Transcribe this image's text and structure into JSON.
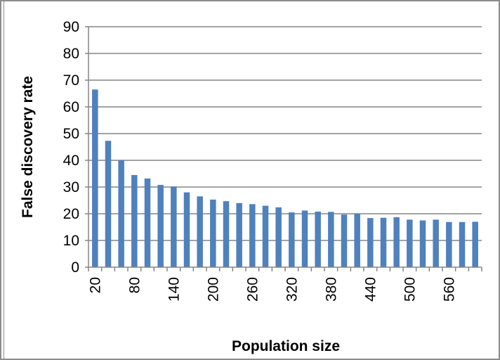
{
  "chart_data": {
    "type": "bar",
    "xlabel": "Population size",
    "ylabel": "False discovery rate",
    "ylim": [
      0,
      90
    ],
    "y_ticks": [
      "0",
      "10",
      "20",
      "30",
      "40",
      "50",
      "60",
      "70",
      "80",
      "90"
    ],
    "x_tick_labels": [
      "20",
      "80",
      "140",
      "200",
      "260",
      "320",
      "380",
      "440",
      "500",
      "560"
    ],
    "x_tick_every": 3,
    "categories": [
      "20",
      "40",
      "60",
      "80",
      "100",
      "120",
      "140",
      "160",
      "180",
      "200",
      "220",
      "240",
      "260",
      "280",
      "300",
      "320",
      "340",
      "360",
      "380",
      "400",
      "420",
      "440",
      "460",
      "480",
      "500",
      "520",
      "540",
      "560",
      "580",
      "600"
    ],
    "values": [
      66.5,
      47.3,
      40.0,
      34.5,
      33.2,
      30.8,
      30.2,
      28.0,
      26.5,
      25.3,
      24.7,
      24.0,
      23.6,
      23.0,
      22.4,
      20.5,
      21.2,
      20.8,
      20.7,
      19.7,
      20.0,
      18.4,
      18.5,
      18.7,
      17.8,
      17.5,
      17.8,
      16.9,
      16.9,
      17.0
    ],
    "bar_color": "#4f81bd",
    "grid": true,
    "legend": "none"
  }
}
